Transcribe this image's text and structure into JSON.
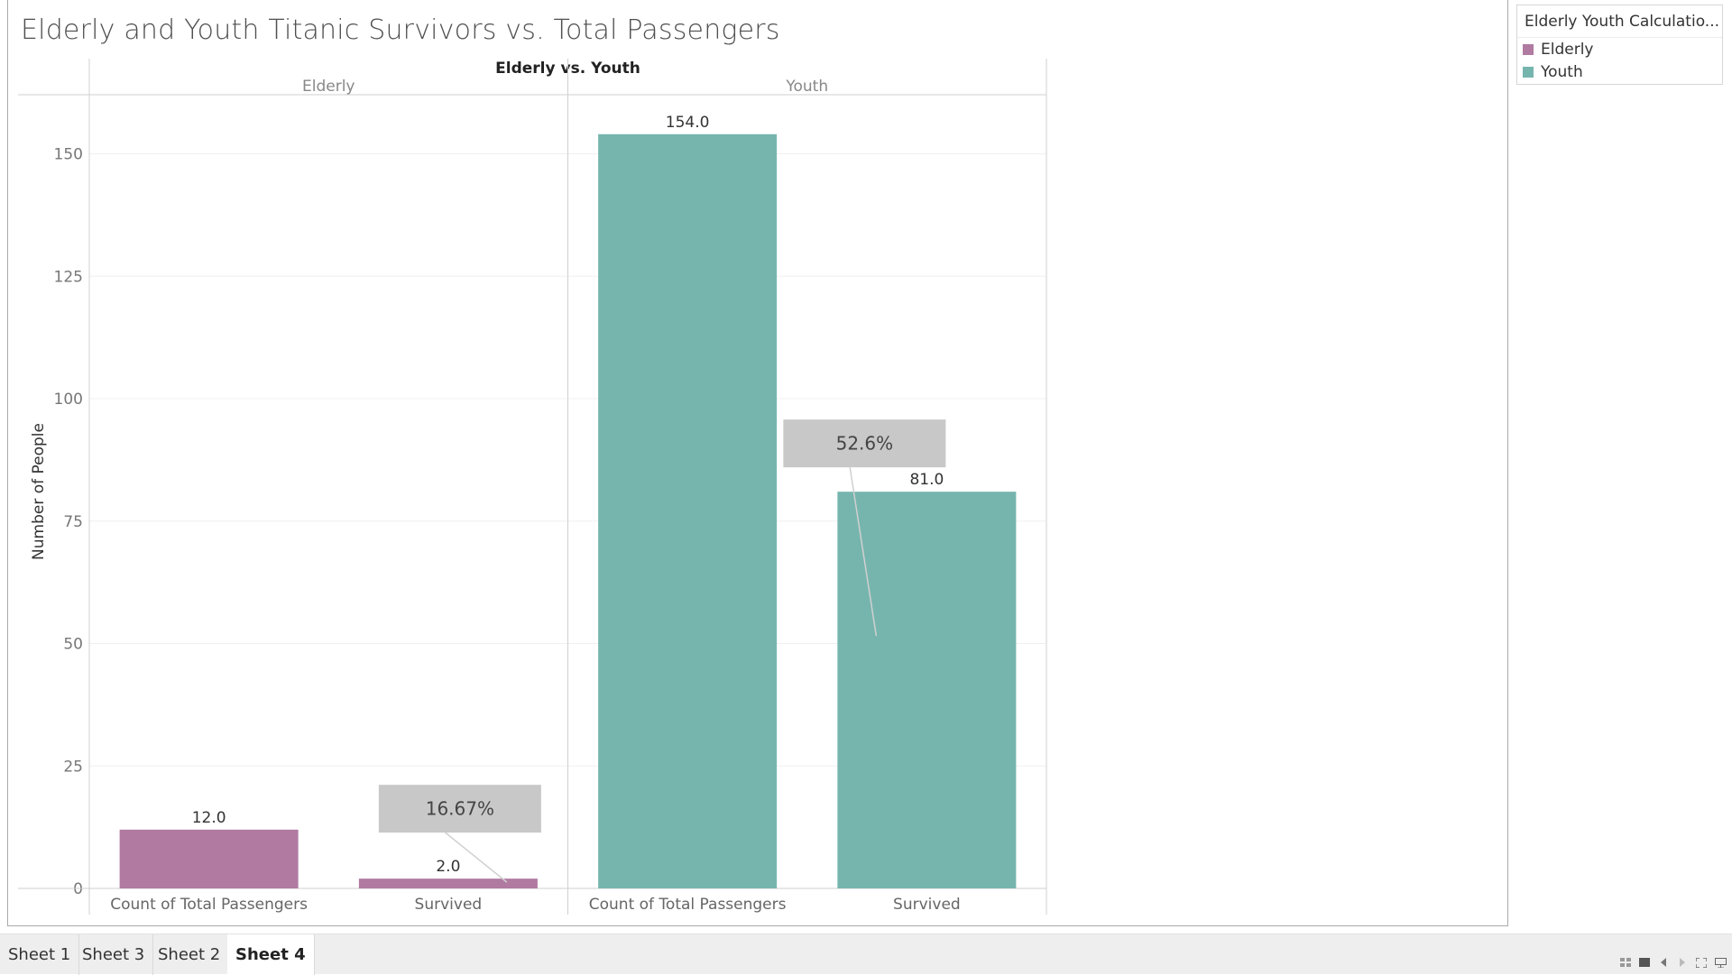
{
  "title": "Elderly and Youth Titanic Survivors vs. Total Passengers",
  "legend": {
    "title": "Elderly Youth Calculatio...",
    "items": [
      {
        "label": "Elderly",
        "color": "#b07aa1"
      },
      {
        "label": "Youth",
        "color": "#76b5ae"
      }
    ]
  },
  "chart_data": {
    "type": "bar",
    "title": "Elderly and Youth Titanic Survivors vs. Total Passengers",
    "column_header": "Elderly vs. Youth",
    "panes": [
      "Elderly",
      "Youth"
    ],
    "categories": [
      "Count of Total Passengers",
      "Survived"
    ],
    "ylabel": "Number of People",
    "ylim": [
      0,
      165
    ],
    "yticks": [
      0,
      25,
      50,
      75,
      100,
      125,
      150
    ],
    "grid": true,
    "legend_position": "top-right",
    "series": [
      {
        "name": "Elderly",
        "color": "#b07aa1",
        "values": [
          12.0,
          2.0
        ],
        "labels": [
          "12.0",
          "2.0"
        ]
      },
      {
        "name": "Youth",
        "color": "#76b5ae",
        "values": [
          154.0,
          81.0
        ],
        "labels": [
          "154.0",
          "81.0"
        ]
      }
    ],
    "annotations": [
      {
        "pane": "Elderly",
        "category": "Survived",
        "text": "16.67%"
      },
      {
        "pane": "Youth",
        "category": "Survived",
        "text": "52.6%"
      }
    ]
  },
  "sheet_tabs": [
    {
      "label": "Sheet 1",
      "active": false
    },
    {
      "label": "Sheet 3",
      "active": false
    },
    {
      "label": "Sheet 2",
      "active": false
    },
    {
      "label": "Sheet 4",
      "active": true
    }
  ],
  "nav_icons": [
    "grid-view-icon",
    "filmstrip-view-icon",
    "prev-sheet-icon",
    "next-sheet-icon",
    "fullscreen-icon",
    "presentation-icon"
  ]
}
